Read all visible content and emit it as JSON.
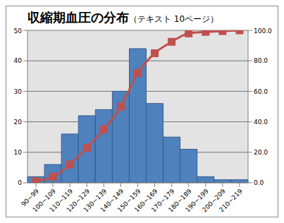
{
  "chart_data": {
    "type": "bar",
    "title": "収縮期血圧の分布（テキスト 10ページ）",
    "categories": [
      "90~99",
      "100~109",
      "110~119",
      "120~129",
      "130~139",
      "140~149",
      "150~159",
      "160~169",
      "170~179",
      "180~189",
      "190~199",
      "200~209",
      "210~219"
    ],
    "series": [
      {
        "type": "bar",
        "color": "#4f81bd",
        "values": [
          2,
          6,
          16,
          22,
          24,
          30,
          44,
          26,
          15,
          11,
          2,
          1,
          1
        ]
      },
      {
        "type": "line",
        "color": "#c0504d",
        "marker": "square",
        "axis": "y2",
        "values": [
          1,
          4,
          12,
          23,
          35,
          50,
          72,
          85,
          92.5,
          98,
          99,
          99.5,
          100
        ]
      }
    ],
    "ylim": [
      0,
      50
    ],
    "yticks": [
      0,
      10,
      20,
      30,
      40,
      50
    ],
    "y2lim": [
      0,
      100
    ],
    "y2ticks": [
      {
        "value": 0,
        "label": "0.0"
      },
      {
        "value": 20,
        "label": "20.0"
      },
      {
        "value": 40,
        "label": "40.0"
      },
      {
        "value": 60,
        "label": "60.0"
      },
      {
        "value": 80,
        "label": "80.0"
      },
      {
        "value": 100,
        "label": "100.0"
      }
    ],
    "grid": true
  }
}
